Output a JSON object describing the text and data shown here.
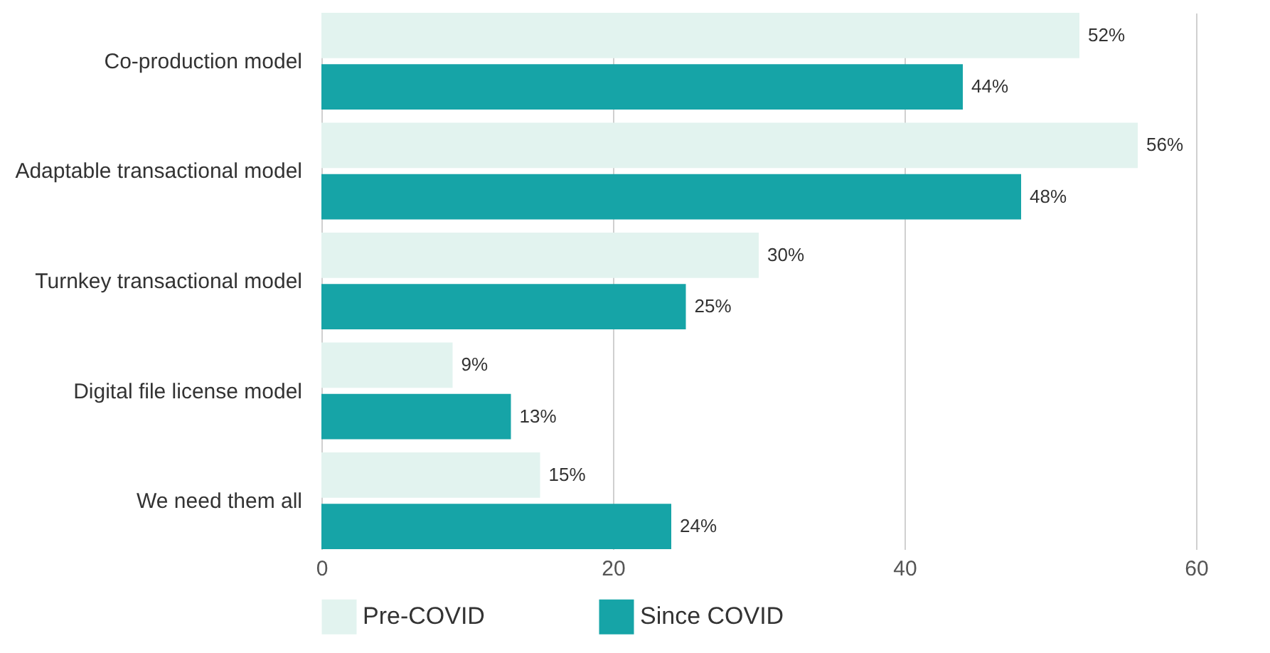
{
  "chart_data": {
    "type": "bar",
    "orientation": "horizontal",
    "categories": [
      "Co-production model",
      "Adaptable transactional model",
      "Turnkey transactional model",
      "Digital file license model",
      "We need them all"
    ],
    "series": [
      {
        "name": "Pre-COVID",
        "color": "#e2f3ef",
        "values": [
          52,
          56,
          30,
          9,
          15
        ],
        "value_labels": [
          "52%",
          "56%",
          "30%",
          "9%",
          "15%"
        ]
      },
      {
        "name": "Since COVID",
        "color": "#16a4a7",
        "values": [
          44,
          48,
          25,
          13,
          24
        ],
        "value_labels": [
          "44%",
          "48%",
          "25%",
          "13%",
          "24%"
        ]
      }
    ],
    "xlim": [
      0,
      60
    ],
    "xticks": [
      0,
      20,
      40,
      60
    ],
    "grid": "x",
    "legend": "bottom"
  }
}
